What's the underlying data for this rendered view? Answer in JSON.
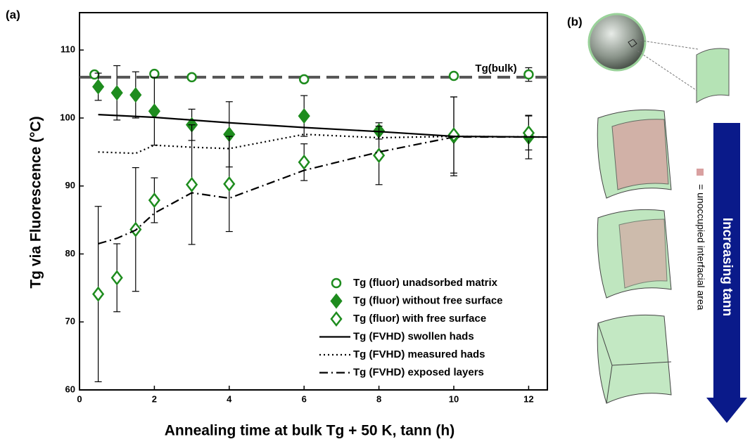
{
  "chart_data": {
    "type": "scatter",
    "panel_label": "(a)",
    "xlabel": "Annealing time at bulk Tg + 50 K, tann (h)",
    "ylabel": "Tg via Fluorescence (°C)",
    "xlim": [
      0,
      12.5
    ],
    "ylim": [
      60,
      115.5
    ],
    "xticks": [
      0,
      2,
      4,
      6,
      8,
      10,
      12
    ],
    "yticks": [
      60,
      70,
      80,
      90,
      100,
      110
    ],
    "legend": "lower right",
    "reference_line": {
      "value": 106,
      "label": "Tg(bulk)",
      "color": "#555555"
    },
    "series": [
      {
        "name": "Tg (fluor) unadsorbed matrix",
        "type": "scatter",
        "marker": "circle-open",
        "color": "#1e8c1e",
        "x": [
          0.4,
          2,
          3,
          6,
          10,
          12
        ],
        "values": [
          106.4,
          106.5,
          106.0,
          105.7,
          106.2,
          106.4
        ],
        "errors": [
          null,
          null,
          null,
          null,
          null,
          1.0
        ]
      },
      {
        "name": "Tg (fluor) without free surface",
        "type": "scatter",
        "marker": "diamond-filled",
        "color": "#1e8c1e",
        "x": [
          0.5,
          1,
          1.5,
          2,
          3,
          4,
          6,
          8,
          10,
          12
        ],
        "values": [
          104.6,
          103.7,
          103.4,
          101.0,
          99.0,
          97.6,
          100.3,
          98.1,
          97.3,
          97.2
        ],
        "errors": [
          2.0,
          4.0,
          3.4,
          5.0,
          2.3,
          4.8,
          3.0,
          1.2,
          5.8,
          3.2
        ]
      },
      {
        "name": "Tg (fluor) with free surface",
        "type": "scatter",
        "marker": "diamond-open",
        "color": "#1e8c1e",
        "x": [
          0.5,
          1,
          1.5,
          2,
          3,
          4,
          6,
          8,
          10,
          12
        ],
        "values": [
          74.1,
          76.5,
          83.6,
          87.9,
          90.2,
          90.3,
          93.5,
          94.5,
          97.5,
          97.8
        ],
        "errors": [
          12.9,
          5.0,
          9.1,
          3.3,
          8.8,
          7.0,
          2.7,
          4.3,
          5.6,
          2.5
        ]
      },
      {
        "name": "Tg (FVHD) swollen hads",
        "type": "line",
        "dash": "solid",
        "color": "#000000",
        "x": [
          0.5,
          2,
          4,
          6,
          8,
          10,
          12.5
        ],
        "values": [
          100.5,
          100.1,
          99.3,
          98.6,
          98.0,
          97.3,
          97.2
        ]
      },
      {
        "name": "Tg (FVHD) measured hads",
        "type": "line",
        "dash": "dotted",
        "color": "#000000",
        "x": [
          0.5,
          1.5,
          2,
          3,
          4,
          6,
          8,
          10,
          12.5
        ],
        "values": [
          95.0,
          94.8,
          96.0,
          95.7,
          95.5,
          97.6,
          97.1,
          97.3,
          97.2
        ]
      },
      {
        "name": "Tg (FVHD) exposed layers",
        "type": "line",
        "dash": "dashdot",
        "color": "#000000",
        "x": [
          0.5,
          1,
          1.5,
          2,
          3,
          4,
          6,
          8,
          10,
          12.5
        ],
        "values": [
          81.5,
          82.3,
          83.5,
          86.0,
          89.0,
          88.2,
          92.3,
          95.0,
          97.2,
          97.2
        ]
      }
    ]
  },
  "panel_b": {
    "label": "(b)",
    "arrow_text": "Increasing tann",
    "legend_text": "= unoccupied interfacial area"
  }
}
